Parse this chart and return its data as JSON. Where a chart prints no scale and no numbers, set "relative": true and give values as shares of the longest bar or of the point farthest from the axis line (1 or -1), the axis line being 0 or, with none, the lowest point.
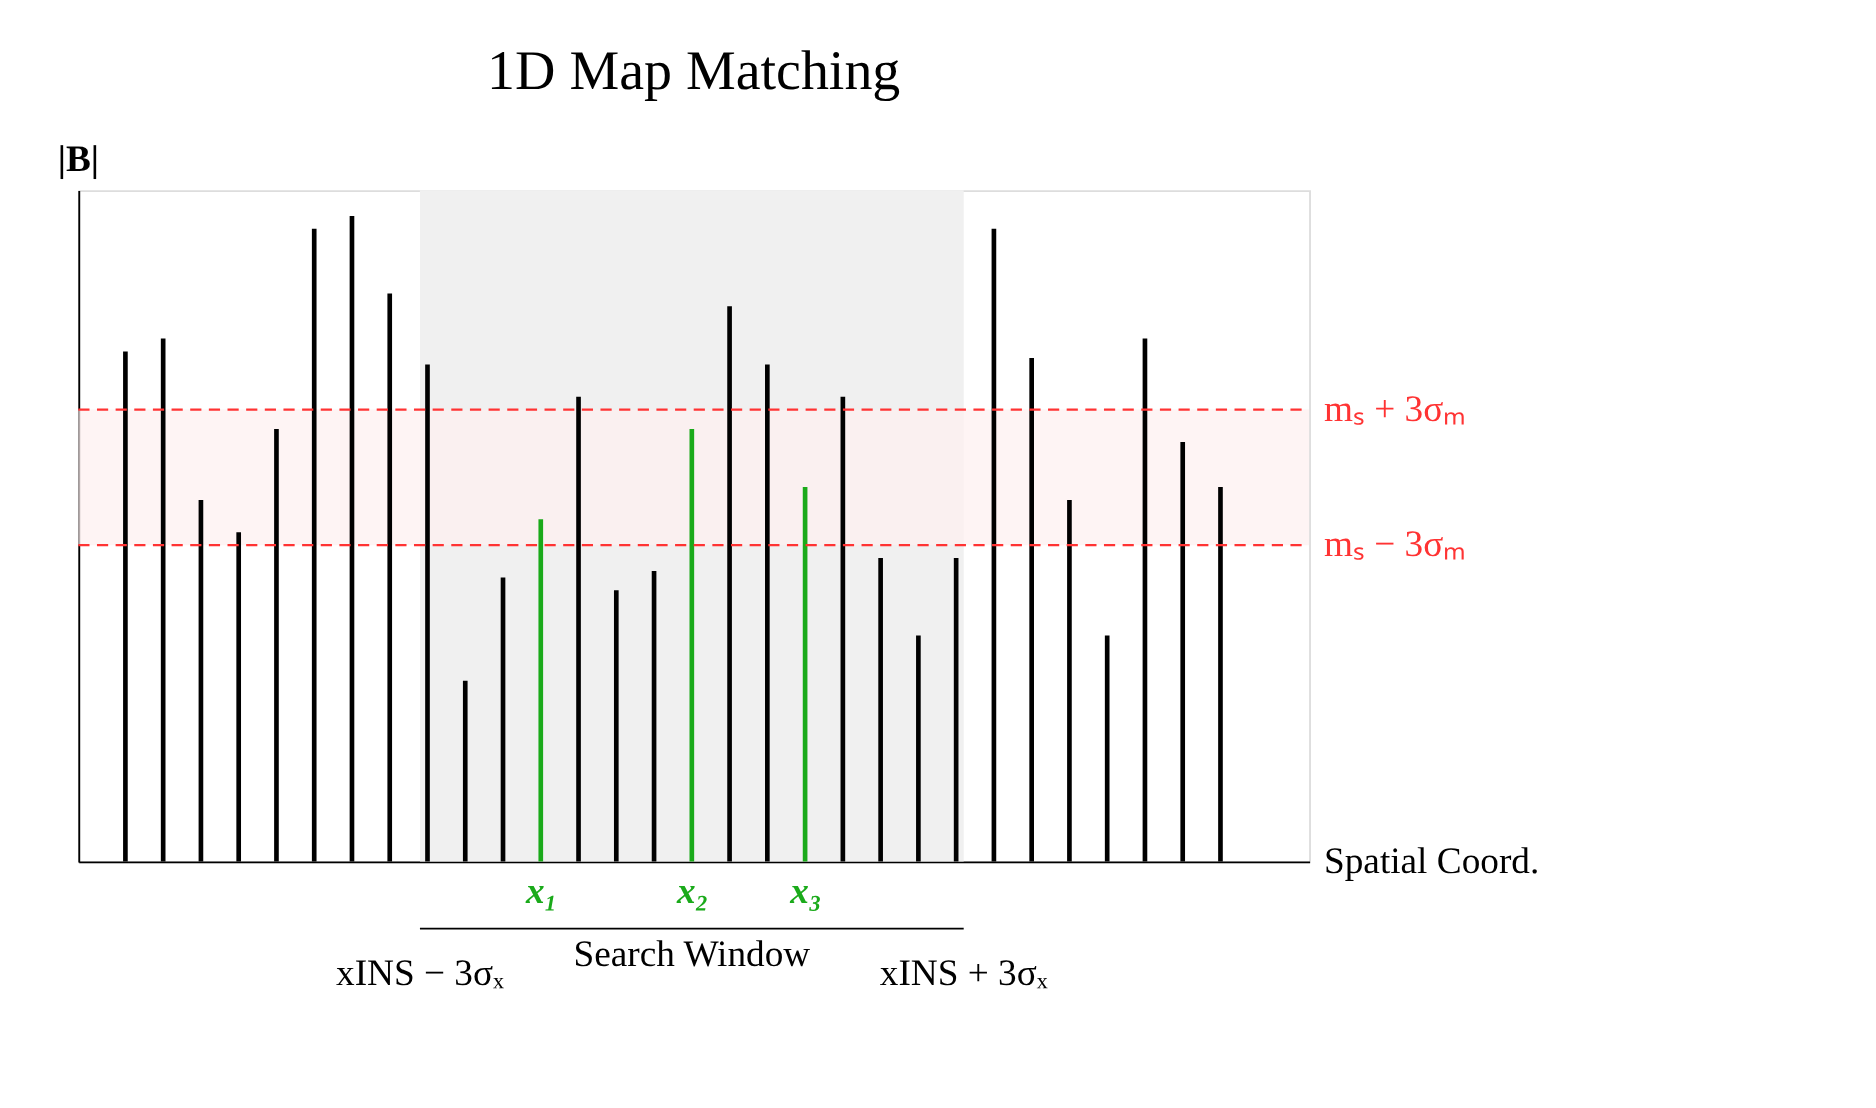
{
  "chart_data": {
    "type": "bar",
    "title": "1D Map Matching",
    "ylabel": "|B|",
    "xlabel": "Spatial Coord.",
    "relative": true,
    "categories": [
      null,
      null,
      null,
      null,
      null,
      null,
      null,
      null,
      null,
      null,
      null,
      "x₁",
      null,
      null,
      null,
      "x₂",
      null,
      null,
      "x₃",
      null,
      null,
      null,
      null,
      null,
      null,
      null,
      null,
      null,
      null,
      null
    ],
    "values": [
      0.79,
      0.81,
      0.56,
      0.51,
      0.67,
      0.98,
      1,
      0.88,
      0.77,
      0.28,
      0.44,
      0.53,
      0.72,
      0.42,
      0.45,
      0.67,
      0.86,
      0.77,
      0.58,
      0.72,
      0.47,
      0.35,
      0.47,
      0.98,
      0.78,
      0.56,
      0.35,
      0.81,
      0.65,
      0.58
    ],
    "colors": [
      "#000000",
      "#000000",
      "#000000",
      "#000000",
      "#000000",
      "#000000",
      "#000000",
      "#000000",
      "#000000",
      "#000000",
      "#000000",
      "#1aaa1a",
      "#000000",
      "#000000",
      "#000000",
      "#1aaa1a",
      "#000000",
      "#000000",
      "#1aaa1a",
      "#000000",
      "#000000",
      "#000000",
      "#000000",
      "#000000",
      "#000000",
      "#000000",
      "#000000",
      "#000000",
      "#000000",
      "#000000"
    ],
    "ref_lines": [
      {
        "axis": "y",
        "value": 0.7,
        "label": "mₛ + 3σₘ",
        "color": "#ff3333",
        "line_style": "dashed"
      },
      {
        "axis": "y",
        "value": 0.49,
        "label": "mₛ − 3σₘ",
        "color": "#ff3333",
        "line_style": "dashed"
      }
    ],
    "bands": [
      {
        "axis": "y",
        "from": 0.49,
        "to": 0.7,
        "color": "#fdf0f0"
      }
    ],
    "annotations": [
      "xINS − 3σₓ",
      "Search Window",
      "xINS + 3σₓ"
    ]
  }
}
